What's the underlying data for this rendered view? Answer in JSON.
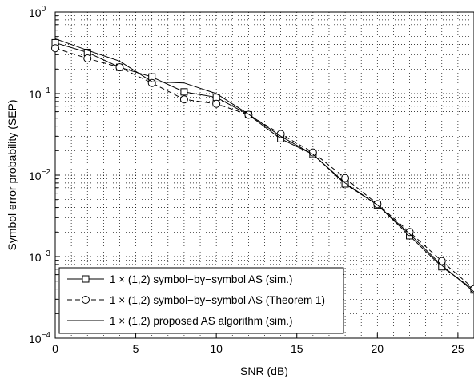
{
  "chart_data": {
    "type": "line",
    "xlabel": "SNR (dB)",
    "ylabel": "Symbol error probability (SEP)",
    "xlim": [
      0,
      26
    ],
    "ylim": [
      0.0001,
      1
    ],
    "yscale": "log",
    "grid": true,
    "legend_position": "bottom-left",
    "x_ticks": [
      0,
      5,
      10,
      15,
      20,
      25
    ],
    "y_ticks": [
      {
        "value": 1,
        "base": "10",
        "exp": "0"
      },
      {
        "value": 0.1,
        "base": "10",
        "exp": "−1"
      },
      {
        "value": 0.01,
        "base": "10",
        "exp": "−2"
      },
      {
        "value": 0.001,
        "base": "10",
        "exp": "−3"
      },
      {
        "value": 0.0001,
        "base": "10",
        "exp": "−4"
      }
    ],
    "series": [
      {
        "name": "1 × (1,2) symbol−by−symbol AS (sim.)",
        "style": "solid",
        "marker": "square",
        "x": [
          0,
          2,
          4,
          6,
          8,
          10,
          12,
          14,
          16,
          18,
          20,
          22,
          24,
          26
        ],
        "y": [
          0.42,
          0.32,
          0.21,
          0.16,
          0.105,
          0.09,
          0.055,
          0.028,
          0.018,
          0.0078,
          0.0043,
          0.0018,
          0.00075,
          0.00039
        ]
      },
      {
        "name": "1 × (1,2) symbol−by−symbol AS (Theorem 1)",
        "style": "dashed",
        "marker": "circle",
        "x": [
          0,
          2,
          4,
          6,
          8,
          10,
          12,
          14,
          16,
          18,
          20,
          22,
          24,
          26
        ],
        "y": [
          0.36,
          0.27,
          0.21,
          0.135,
          0.085,
          0.075,
          0.055,
          0.032,
          0.019,
          0.0092,
          0.0044,
          0.002,
          0.00088,
          0.0004
        ]
      },
      {
        "name": "1 × (1,2) proposed AS algorithm (sim.)",
        "style": "solid",
        "marker": "none",
        "x": [
          0,
          2,
          4,
          6,
          8,
          10,
          12,
          14,
          16,
          18,
          20,
          22,
          24,
          26
        ],
        "y": [
          0.47,
          0.34,
          0.25,
          0.14,
          0.135,
          0.1,
          0.056,
          0.03,
          0.018,
          0.008,
          0.0043,
          0.0019,
          0.00078,
          0.00037
        ]
      }
    ]
  }
}
